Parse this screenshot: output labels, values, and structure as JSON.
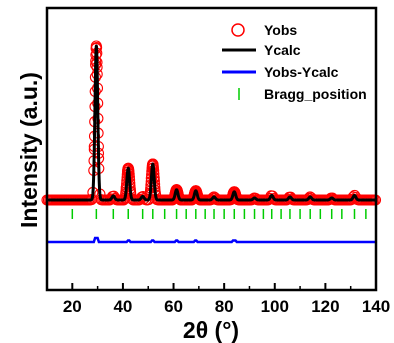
{
  "chart_data": {
    "type": "line",
    "xlabel": "2θ (°)",
    "ylabel": "Intensity (a.u.)",
    "xlim": [
      10,
      140
    ],
    "xticks": [
      20,
      40,
      60,
      80,
      100,
      120,
      140
    ],
    "yticks_shown": false,
    "legend_position": "top-right",
    "baseline": 1.0,
    "peaks": [
      {
        "x": 29.5,
        "height": 30.0
      },
      {
        "x": 36.2,
        "height": 0.8
      },
      {
        "x": 42.1,
        "height": 6.2
      },
      {
        "x": 47.8,
        "height": 0.7
      },
      {
        "x": 51.8,
        "height": 7.0
      },
      {
        "x": 61.2,
        "height": 2.0
      },
      {
        "x": 68.8,
        "height": 1.8
      },
      {
        "x": 76.0,
        "height": 0.6
      },
      {
        "x": 84.0,
        "height": 1.6
      },
      {
        "x": 92.0,
        "height": 0.4
      },
      {
        "x": 98.8,
        "height": 0.9
      },
      {
        "x": 106.0,
        "height": 0.6
      },
      {
        "x": 114.0,
        "height": 0.6
      },
      {
        "x": 122.5,
        "height": 0.4
      },
      {
        "x": 131.5,
        "height": 0.9
      }
    ],
    "bragg_positions": [
      20,
      29.5,
      36.2,
      42.1,
      47.8,
      51.8,
      56.5,
      61.2,
      65.0,
      68.8,
      72.5,
      76.0,
      80.0,
      84.0,
      88.0,
      92.0,
      95.5,
      98.8,
      102.5,
      106.0,
      110.0,
      114.0,
      118.0,
      122.5,
      126.5,
      131.5,
      136.0
    ],
    "difference_level": 0.0,
    "series": [
      {
        "name": "Yobs",
        "color": "#ff0000",
        "style": "open-circle"
      },
      {
        "name": "Ycalc",
        "color": "#000000",
        "style": "line"
      },
      {
        "name": "Yobs-Ycalc",
        "color": "#0000ff",
        "style": "line"
      },
      {
        "name": "Bragg_position",
        "color": "#00cc00",
        "style": "tick"
      }
    ]
  }
}
